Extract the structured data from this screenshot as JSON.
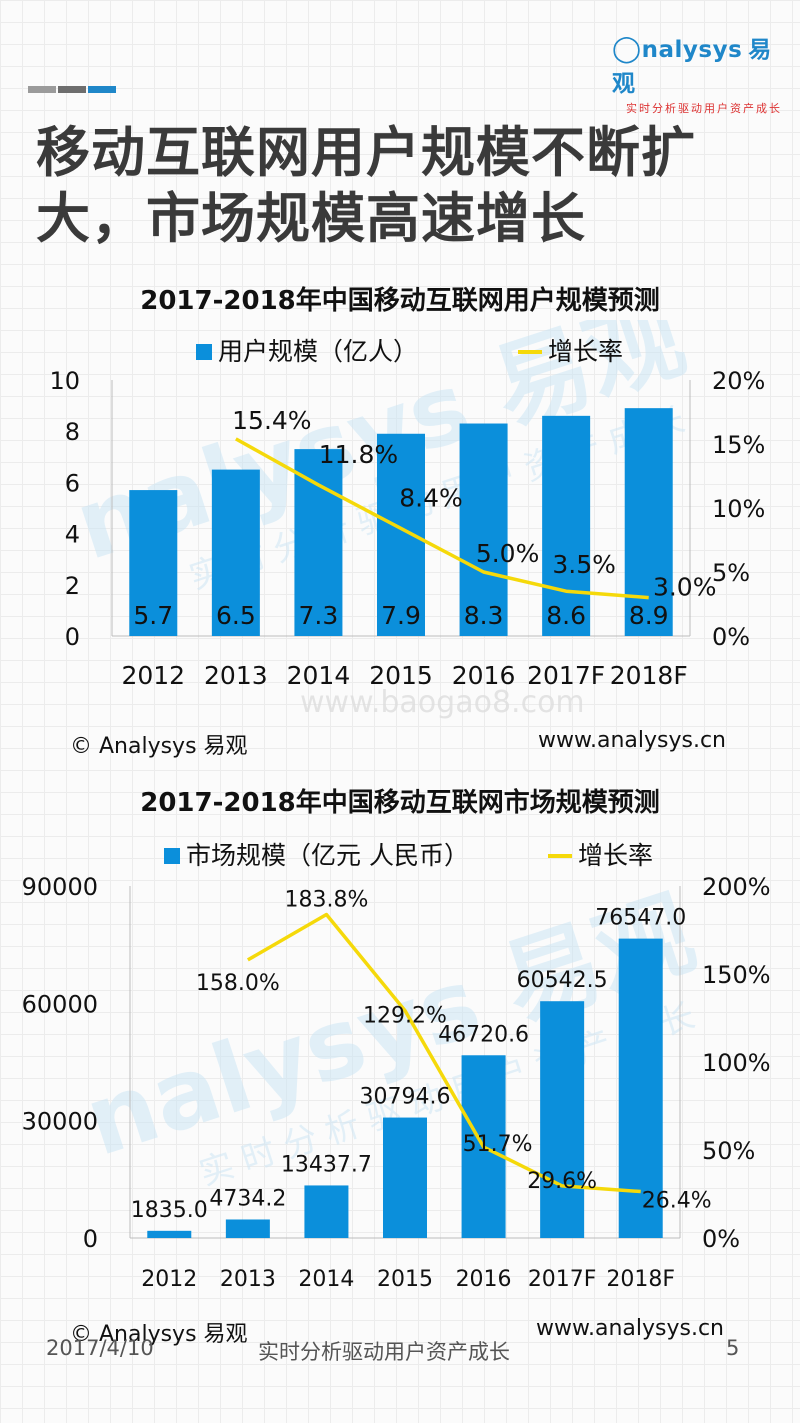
{
  "logo": {
    "word": "nalysys",
    "cn": "易观",
    "tagline": "实时分析驱动用户资产成长"
  },
  "colors": {
    "bar": "#0b8fdb",
    "line": "#f5d90a",
    "title": "#3a3a3a",
    "deco": [
      "#9b9b9b",
      "#6e6e6e",
      "#1f87c9"
    ]
  },
  "page_title": "移动互联网用户规模不断扩大，市场规模高速增长",
  "watermark": {
    "brand": "nalysys 易观",
    "tagline": "实时分析驱动用户资产成长",
    "site": "www.baogao8.com"
  },
  "chart1_footer": {
    "copyright": "© Analysys 易观",
    "site": "www.analysys.cn"
  },
  "chart2_footer": {
    "copyright": "© Analysys 易观",
    "site": "www.analysys.cn"
  },
  "footer": {
    "date": "2017/4/10",
    "slogan": "实时分析驱动用户资产成长",
    "page": "5"
  },
  "chart_data": [
    {
      "type": "bar",
      "title": "2017-2018年中国移动互联网用户规模预测",
      "categories": [
        "2012",
        "2013",
        "2014",
        "2015",
        "2016",
        "2017F",
        "2018F"
      ],
      "series": [
        {
          "name": "用户规模（亿人）",
          "type": "bar",
          "axis": "left",
          "values": [
            5.7,
            6.5,
            7.3,
            7.9,
            8.3,
            8.6,
            8.9
          ],
          "labels": [
            "5.7",
            "6.5",
            "7.3",
            "7.9",
            "8.3",
            "8.6",
            "8.9"
          ]
        },
        {
          "name": "增长率",
          "type": "line",
          "axis": "right",
          "values": [
            null,
            15.4,
            11.8,
            8.4,
            5.0,
            3.5,
            3.0
          ],
          "labels": [
            "",
            "15.4%",
            "11.8%",
            "8.4%",
            "5.0%",
            "3.5%",
            "3.0%"
          ]
        }
      ],
      "ylim": [
        0,
        10
      ],
      "yticks": [
        "0",
        "2",
        "4",
        "6",
        "8",
        "10"
      ],
      "y2lim": [
        0,
        20
      ],
      "y2ticks": [
        "0%",
        "5%",
        "10%",
        "15%",
        "20%"
      ],
      "legend": "top"
    },
    {
      "type": "bar",
      "title": "2017-2018年中国移动互联网市场规模预测",
      "categories": [
        "2012",
        "2013",
        "2014",
        "2015",
        "2016",
        "2017F",
        "2018F"
      ],
      "series": [
        {
          "name": "市场规模（亿元 人民币）",
          "type": "bar",
          "axis": "left",
          "values": [
            1835.0,
            4734.2,
            13437.7,
            30794.6,
            46720.6,
            60542.5,
            76547.0
          ],
          "labels": [
            "1835.0",
            "4734.2",
            "13437.7",
            "30794.6",
            "46720.6",
            "60542.5",
            "76547.0"
          ]
        },
        {
          "name": "增长率",
          "type": "line",
          "axis": "right",
          "values": [
            null,
            158.0,
            183.8,
            129.2,
            51.7,
            29.6,
            26.4
          ],
          "labels": [
            "",
            "158.0%",
            "183.8%",
            "129.2%",
            "51.7%",
            "29.6%",
            "26.4%"
          ]
        }
      ],
      "ylim": [
        0,
        90000
      ],
      "yticks": [
        "0",
        "30000",
        "60000",
        "90000"
      ],
      "y2lim": [
        0,
        200
      ],
      "y2ticks": [
        "0%",
        "50%",
        "100%",
        "150%",
        "200%"
      ],
      "legend": "top"
    }
  ]
}
